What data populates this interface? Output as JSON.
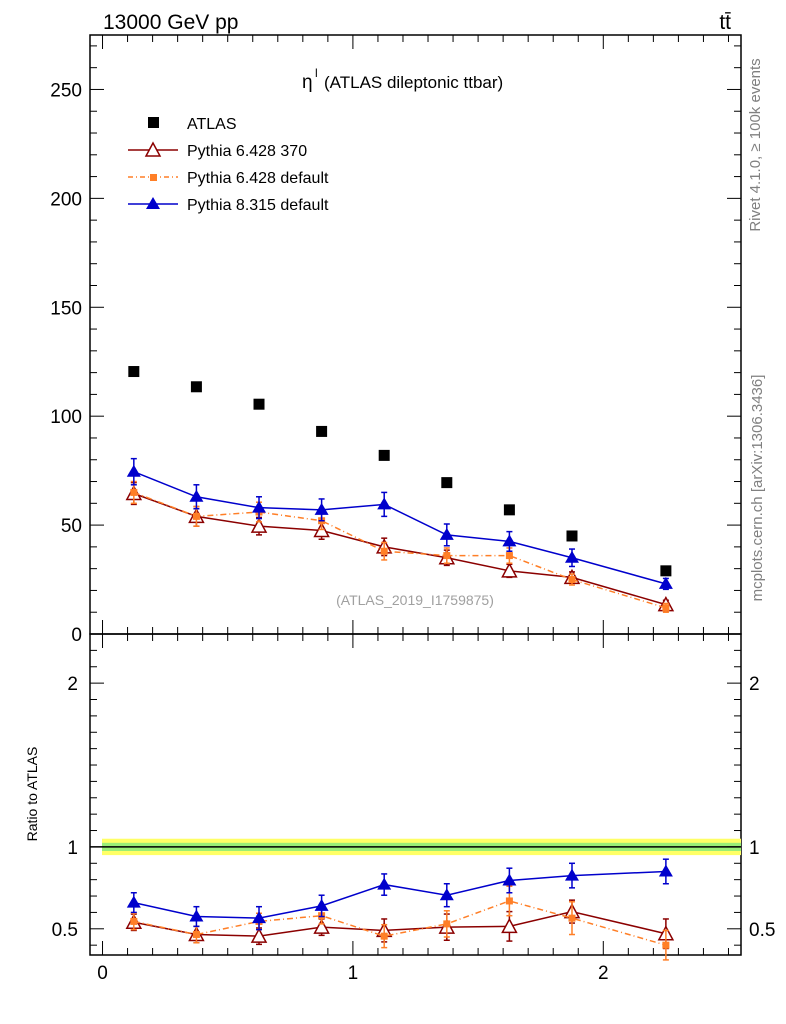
{
  "header": {
    "energy_label": "13000 GeV pp",
    "process_label": "tt̄"
  },
  "side_labels": {
    "rivet": "Rivet 4.1.0, ≥ 100k events",
    "mcplots": "mcplots.cern.ch [arXiv:1306.3436]"
  },
  "colors": {
    "atlas": "#000000",
    "py6_370": "#8b0000",
    "py6_default": "#ff7f27",
    "py8_default": "#0000cc",
    "band_outer": "#ffff66",
    "band_inner": "#99ee77"
  },
  "chart_data": [
    {
      "type": "scatter",
      "title": "η",
      "title_superscript": "l",
      "subtitle": "(ATLAS dileptonic ttbar)",
      "watermark": "(ATLAS_2019_I1759875)",
      "xlabel": "",
      "ylabel": "",
      "xlim": [
        -0.05,
        2.55
      ],
      "ylim": [
        0,
        275
      ],
      "y_ticks": [
        0,
        50,
        100,
        150,
        200,
        250
      ],
      "y_tick_labels": [
        "0",
        "50",
        "100",
        "150",
        "200",
        "250"
      ],
      "x": [
        0.125,
        0.375,
        0.625,
        0.875,
        1.125,
        1.375,
        1.625,
        1.875,
        2.25
      ],
      "series": [
        {
          "name": "ATLAS",
          "marker": "square",
          "values": [
            120.5,
            113.5,
            105.5,
            93,
            82,
            69.5,
            57,
            45,
            29
          ],
          "errors": [
            0,
            0,
            0,
            0,
            0,
            0,
            0,
            0,
            0
          ]
        },
        {
          "name": "Pythia 6.428 370",
          "marker": "open-triangle",
          "values": [
            64.5,
            54,
            49.5,
            47.5,
            40,
            35,
            29,
            26,
            13.5
          ],
          "errors": [
            5,
            4.5,
            4,
            4,
            4,
            3.5,
            3,
            2.5,
            2
          ]
        },
        {
          "name": "Pythia 6.428 default",
          "marker": "small-square",
          "dashed": true,
          "values": [
            65,
            54,
            56,
            52,
            38,
            36,
            36,
            25,
            12
          ],
          "errors": [
            5,
            4.5,
            4.5,
            4,
            4,
            3.5,
            3.5,
            2.5,
            2
          ]
        },
        {
          "name": "Pythia 8.315 default",
          "marker": "triangle",
          "values": [
            74.5,
            63,
            58,
            57,
            59.5,
            45.5,
            42.5,
            35,
            23
          ],
          "errors": [
            6,
            5.5,
            5,
            5,
            5.5,
            5,
            4.5,
            4,
            2.5
          ]
        }
      ]
    },
    {
      "type": "line",
      "ylabel": "Ratio to ATLAS",
      "xlim": [
        -0.05,
        2.55
      ],
      "ylim": [
        0.34,
        2.3
      ],
      "x_ticks": [
        0,
        1,
        2
      ],
      "x_tick_labels": [
        "0",
        "1",
        "2"
      ],
      "y_ticks": [
        0.5,
        1,
        2
      ],
      "y_tick_labels": [
        "0.5",
        "1",
        "2"
      ],
      "band": {
        "outer": [
          0.95,
          1.05
        ],
        "inner": [
          0.975,
          1.025
        ]
      },
      "x": [
        0.125,
        0.375,
        0.625,
        0.875,
        1.125,
        1.375,
        1.625,
        1.875,
        2.25
      ],
      "series": [
        {
          "name": "Pythia 6.428 370",
          "marker": "open-triangle",
          "values": [
            0.54,
            0.465,
            0.455,
            0.51,
            0.49,
            0.51,
            0.515,
            0.605,
            0.47
          ],
          "errors": [
            0.05,
            0.05,
            0.05,
            0.05,
            0.07,
            0.08,
            0.09,
            0.07,
            0.09
          ]
        },
        {
          "name": "Pythia 6.428 default",
          "marker": "small-square",
          "dashed": true,
          "values": [
            0.545,
            0.465,
            0.545,
            0.58,
            0.455,
            0.53,
            0.67,
            0.565,
            0.4
          ],
          "errors": [
            0.05,
            0.05,
            0.05,
            0.05,
            0.07,
            0.08,
            0.09,
            0.1,
            0.09
          ]
        },
        {
          "name": "Pythia 8.315 default",
          "marker": "triangle",
          "values": [
            0.66,
            0.575,
            0.565,
            0.64,
            0.77,
            0.705,
            0.795,
            0.825,
            0.85
          ],
          "errors": [
            0.06,
            0.06,
            0.07,
            0.065,
            0.065,
            0.07,
            0.075,
            0.075,
            0.075
          ]
        }
      ]
    }
  ]
}
